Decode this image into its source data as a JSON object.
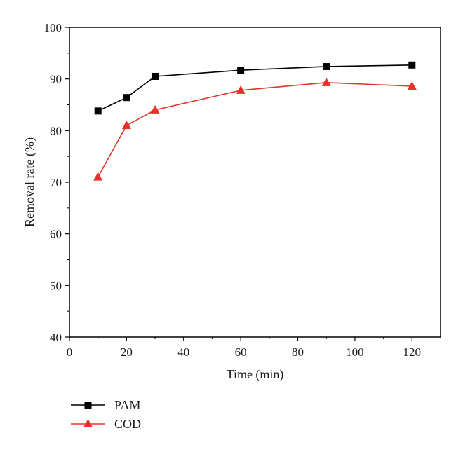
{
  "chart_data": {
    "type": "line",
    "xlabel": "Time (min)",
    "ylabel": "Removal rate (%)",
    "xlim": [
      0,
      130
    ],
    "ylim": [
      40,
      100
    ],
    "x_ticks": [
      0,
      20,
      40,
      60,
      80,
      100,
      120
    ],
    "y_ticks": [
      40,
      50,
      60,
      70,
      80,
      90,
      100
    ],
    "grid": false,
    "legend_position": "bottom-left, below plot",
    "series": [
      {
        "name": "PAM",
        "color": "#000000",
        "marker": "square",
        "x": [
          10,
          20,
          30,
          60,
          90,
          120
        ],
        "y": [
          83.8,
          86.4,
          90.5,
          91.7,
          92.4,
          92.7
        ]
      },
      {
        "name": "COD",
        "color": "#e8302a",
        "marker": "triangle",
        "x": [
          10,
          20,
          30,
          60,
          90,
          120
        ],
        "y": [
          71.0,
          81.0,
          84.0,
          87.8,
          89.3,
          88.6
        ]
      }
    ]
  }
}
